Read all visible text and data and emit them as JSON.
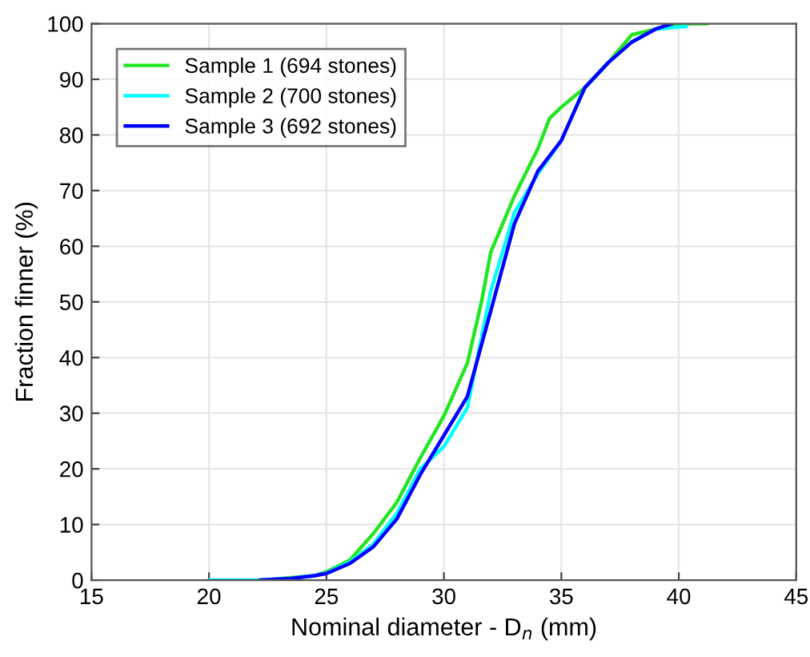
{
  "chart_data": {
    "type": "line",
    "xlabel": "Nominal diameter - D$_{n}$ (mm)",
    "ylabel": "Fraction finner (%)",
    "xlim": [
      15,
      45
    ],
    "ylim": [
      0,
      100
    ],
    "xticks": [
      15,
      20,
      25,
      30,
      35,
      40,
      45
    ],
    "yticks": [
      0,
      10,
      20,
      30,
      40,
      50,
      60,
      70,
      80,
      90,
      100
    ],
    "grid": true,
    "legend": "top left",
    "line_style": "solid",
    "series": [
      {
        "name": "Sample 1 (694 stones)",
        "color": "#22e622",
        "x": [
          22.3,
          24.5,
          25,
          26,
          27,
          28,
          29,
          30,
          31,
          31.6,
          32,
          33,
          34,
          34.5,
          35,
          36,
          37,
          38,
          39,
          39.7,
          40.5,
          41.2
        ],
        "values": [
          0,
          0.8,
          1.5,
          3.6,
          8.4,
          14,
          22,
          29.5,
          39,
          50,
          59,
          69,
          77.5,
          83,
          85,
          88.5,
          93,
          98,
          99,
          99.7,
          100,
          100
        ]
      },
      {
        "name": "Sample 2 (700 stones)",
        "color": "#00ffff",
        "x": [
          20,
          22.2,
          23.5,
          24.5,
          25,
          26,
          27,
          28,
          29,
          30,
          31,
          32,
          33,
          34,
          35,
          36,
          37,
          38,
          39,
          40.3
        ],
        "values": [
          0,
          0,
          0.3,
          0.8,
          1.3,
          3.2,
          6.5,
          12,
          20,
          24,
          31,
          52,
          66,
          73,
          79,
          88.5,
          93,
          96.7,
          99,
          99.5
        ]
      },
      {
        "name": "Sample 3 (692 stones)",
        "color": "#0000ff",
        "x": [
          22.2,
          23.5,
          24.5,
          25,
          26,
          27,
          28,
          29,
          30,
          31,
          32.1,
          33,
          34,
          35,
          36,
          37,
          38,
          39,
          39.7
        ],
        "values": [
          0,
          0.3,
          0.8,
          1.2,
          3,
          6,
          11,
          19,
          26,
          33,
          50,
          64,
          73.5,
          79,
          88.5,
          93,
          96.7,
          99,
          100
        ]
      }
    ]
  }
}
